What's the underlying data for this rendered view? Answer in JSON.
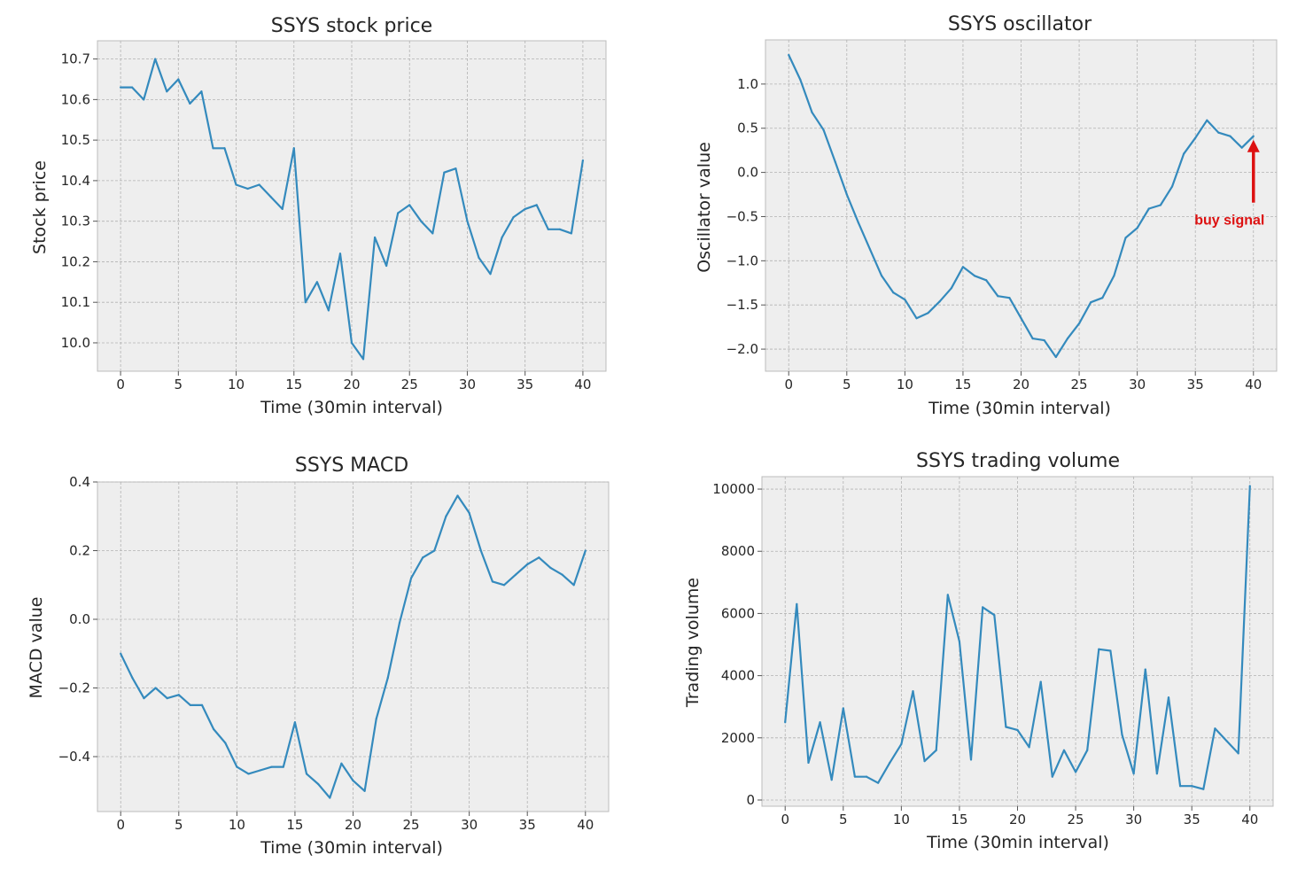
{
  "chart_data": [
    {
      "type": "line",
      "title": "SSYS stock price",
      "xlabel": "Time (30min interval)",
      "ylabel": "Stock price",
      "xlim": [
        -2,
        42
      ],
      "ylim": [
        9.93,
        10.745
      ],
      "xticks": [
        0,
        5,
        10,
        15,
        20,
        25,
        30,
        35,
        40
      ],
      "xtick_labels": [
        "0",
        "5",
        "10",
        "15",
        "20",
        "25",
        "30",
        "35",
        "40"
      ],
      "yticks": [
        10.0,
        10.1,
        10.2,
        10.3,
        10.4,
        10.5,
        10.6,
        10.7
      ],
      "ytick_labels": [
        "10.0",
        "10.1",
        "10.2",
        "10.3",
        "10.4",
        "10.5",
        "10.6",
        "10.7"
      ],
      "grid": true,
      "color": "#348abd",
      "x": [
        0,
        1,
        2,
        3,
        4,
        5,
        6,
        7,
        8,
        9,
        10,
        11,
        12,
        13,
        14,
        15,
        16,
        17,
        18,
        19,
        20,
        21,
        22,
        23,
        24,
        25,
        26,
        27,
        28,
        29,
        30,
        31,
        32,
        33,
        34,
        35,
        36,
        37,
        38,
        39,
        40
      ],
      "y": [
        10.63,
        10.63,
        10.6,
        10.7,
        10.62,
        10.65,
        10.59,
        10.62,
        10.48,
        10.48,
        10.39,
        10.38,
        10.39,
        10.36,
        10.33,
        10.48,
        10.1,
        10.15,
        10.08,
        10.22,
        10.0,
        9.96,
        10.26,
        10.19,
        10.32,
        10.34,
        10.3,
        10.27,
        10.42,
        10.43,
        10.3,
        10.21,
        10.17,
        10.26,
        10.31,
        10.33,
        10.34,
        10.28,
        10.28,
        10.27,
        10.45
      ]
    },
    {
      "type": "line",
      "title": "SSYS oscillator",
      "xlabel": "Time (30min interval)",
      "ylabel": "Oscillator value",
      "xlim": [
        -2,
        42
      ],
      "ylim": [
        -2.25,
        1.5
      ],
      "xticks": [
        0,
        5,
        10,
        15,
        20,
        25,
        30,
        35,
        40
      ],
      "xtick_labels": [
        "0",
        "5",
        "10",
        "15",
        "20",
        "25",
        "30",
        "35",
        "40"
      ],
      "yticks": [
        -2.0,
        -1.5,
        -1.0,
        -0.5,
        0.0,
        0.5,
        1.0
      ],
      "ytick_labels": [
        "−2.0",
        "−1.5",
        "−1.0",
        "−0.5",
        "0.0",
        "0.5",
        "1.0"
      ],
      "grid": true,
      "color": "#348abd",
      "x": [
        0,
        1,
        2,
        3,
        4,
        5,
        6,
        7,
        8,
        9,
        10,
        11,
        12,
        13,
        14,
        15,
        16,
        17,
        18,
        19,
        20,
        21,
        22,
        23,
        24,
        25,
        26,
        27,
        28,
        29,
        30,
        31,
        32,
        33,
        34,
        35,
        36,
        37,
        38,
        39,
        40
      ],
      "y": [
        1.33,
        1.05,
        0.68,
        0.48,
        0.12,
        -0.25,
        -0.57,
        -0.87,
        -1.17,
        -1.36,
        -1.44,
        -1.65,
        -1.59,
        -1.46,
        -1.31,
        -1.07,
        -1.17,
        -1.22,
        -1.4,
        -1.42,
        -1.65,
        -1.88,
        -1.9,
        -2.09,
        -1.88,
        -1.71,
        -1.47,
        -1.42,
        -1.17,
        -0.74,
        -0.63,
        -0.41,
        -0.37,
        -0.16,
        0.21,
        0.39,
        0.59,
        0.45,
        0.41,
        0.28,
        0.41
      ],
      "annotations": [
        {
          "text": "buy signal",
          "x": 40,
          "y": 0.41,
          "color": "#dd1111"
        }
      ]
    },
    {
      "type": "line",
      "title": "SSYS MACD",
      "xlabel": "Time (30min interval)",
      "ylabel": "MACD value",
      "xlim": [
        -2,
        42
      ],
      "ylim": [
        -0.56,
        0.4
      ],
      "xticks": [
        0,
        5,
        10,
        15,
        20,
        25,
        30,
        35,
        40
      ],
      "xtick_labels": [
        "0",
        "5",
        "10",
        "15",
        "20",
        "25",
        "30",
        "35",
        "40"
      ],
      "yticks": [
        -0.4,
        -0.2,
        0.0,
        0.2,
        0.4
      ],
      "ytick_labels": [
        "−0.4",
        "−0.2",
        "0.0",
        "0.2",
        "0.4"
      ],
      "grid": true,
      "color": "#348abd",
      "x": [
        0,
        1,
        2,
        3,
        4,
        5,
        6,
        7,
        8,
        9,
        10,
        11,
        12,
        13,
        14,
        15,
        16,
        17,
        18,
        19,
        20,
        21,
        22,
        23,
        24,
        25,
        26,
        27,
        28,
        29,
        30,
        31,
        32,
        33,
        34,
        35,
        36,
        37,
        38,
        39,
        40
      ],
      "y": [
        -0.1,
        -0.17,
        -0.23,
        -0.2,
        -0.23,
        -0.22,
        -0.25,
        -0.25,
        -0.32,
        -0.36,
        -0.43,
        -0.45,
        -0.44,
        -0.43,
        -0.43,
        -0.3,
        -0.45,
        -0.48,
        -0.52,
        -0.42,
        -0.47,
        -0.5,
        -0.29,
        -0.17,
        -0.01,
        0.12,
        0.18,
        0.2,
        0.3,
        0.36,
        0.31,
        0.2,
        0.11,
        0.1,
        0.13,
        0.16,
        0.18,
        0.15,
        0.13,
        0.1,
        0.2
      ]
    },
    {
      "type": "line",
      "title": "SSYS trading volume",
      "xlabel": "Time (30min interval)",
      "ylabel": "Trading volume",
      "xlim": [
        -2,
        42
      ],
      "ylim": [
        -200,
        10400
      ],
      "xticks": [
        0,
        5,
        10,
        15,
        20,
        25,
        30,
        35,
        40
      ],
      "xtick_labels": [
        "0",
        "5",
        "10",
        "15",
        "20",
        "25",
        "30",
        "35",
        "40"
      ],
      "yticks": [
        0,
        2000,
        4000,
        6000,
        8000,
        10000
      ],
      "ytick_labels": [
        "0",
        "2000",
        "4000",
        "6000",
        "8000",
        "10000"
      ],
      "grid": true,
      "color": "#348abd",
      "x": [
        0,
        1,
        2,
        3,
        4,
        5,
        6,
        7,
        8,
        9,
        10,
        11,
        12,
        13,
        14,
        15,
        16,
        17,
        18,
        19,
        20,
        21,
        22,
        23,
        24,
        25,
        26,
        27,
        28,
        29,
        30,
        31,
        32,
        33,
        34,
        35,
        36,
        37,
        38,
        39,
        40
      ],
      "y": [
        2500,
        6300,
        1200,
        2500,
        650,
        2950,
        750,
        750,
        550,
        1200,
        1800,
        3500,
        1250,
        1600,
        6600,
        5100,
        1300,
        6200,
        5950,
        2350,
        2250,
        1700,
        3800,
        750,
        1600,
        900,
        1600,
        4850,
        4800,
        2100,
        850,
        4200,
        850,
        3300,
        450,
        450,
        350,
        2300,
        1900,
        1500,
        10100
      ]
    }
  ]
}
